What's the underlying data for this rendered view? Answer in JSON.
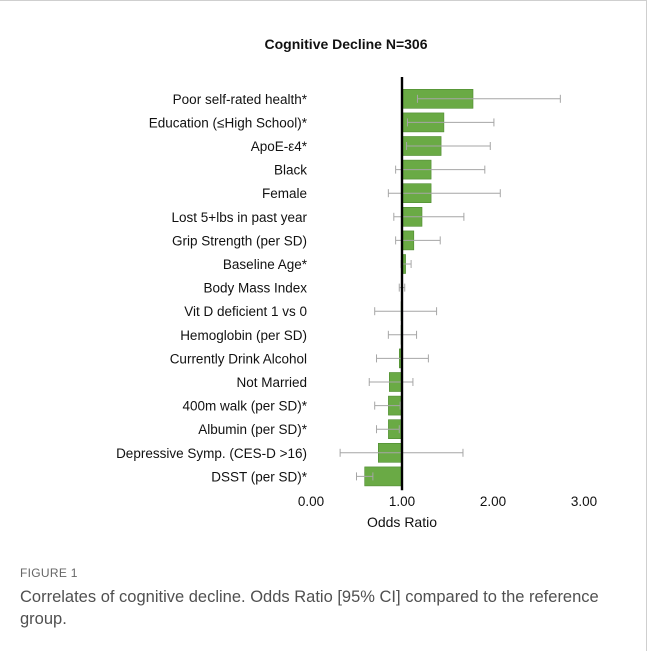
{
  "figure": {
    "label": "FIGURE 1",
    "caption": "Correlates of cognitive decline. Odds Ratio [95% CI] compared to the reference group."
  },
  "chart_data": {
    "type": "bar",
    "orientation": "horizontal",
    "title": "Cognitive Decline N=306",
    "xlabel": "Odds Ratio",
    "ylabel": "",
    "xlim": [
      0,
      3
    ],
    "xticks": [
      "0.00",
      "1.00",
      "2.00",
      "3.00"
    ],
    "reference_line": 1.0,
    "categories": [
      "Poor self-rated health*",
      "Education (≤High School)*",
      "ApoE-ε4*",
      "Black",
      "Female",
      "Lost 5+lbs in past year",
      "Grip Strength (per SD)",
      "Baseline Age*",
      "Body Mass Index",
      "Vit D deficient 1 vs 0",
      "Hemoglobin (per SD)",
      "Currently Drink Alcohol",
      "Not Married",
      "400m walk (per SD)*",
      "Albumin (per SD)*",
      "Depressive Symp. (CES-D >16)",
      "DSST (per SD)*"
    ],
    "values": [
      1.78,
      1.46,
      1.43,
      1.32,
      1.32,
      1.22,
      1.13,
      1.04,
      1.0,
      0.99,
      0.99,
      0.97,
      0.86,
      0.85,
      0.85,
      0.74,
      0.59
    ],
    "ci_low": [
      1.17,
      1.06,
      1.05,
      0.93,
      0.85,
      0.91,
      0.93,
      0.99,
      0.97,
      0.7,
      0.85,
      0.72,
      0.64,
      0.7,
      0.72,
      0.32,
      0.5
    ],
    "ci_high": [
      2.74,
      2.01,
      1.97,
      1.91,
      2.08,
      1.68,
      1.42,
      1.1,
      1.03,
      1.38,
      1.16,
      1.29,
      1.12,
      0.98,
      0.97,
      1.67,
      0.68
    ],
    "bar_color": "#6aaa45",
    "bar_edge_color": "#4e8a30",
    "errorbar_color": "#a6a6a6",
    "grid": false,
    "legend": "none"
  }
}
